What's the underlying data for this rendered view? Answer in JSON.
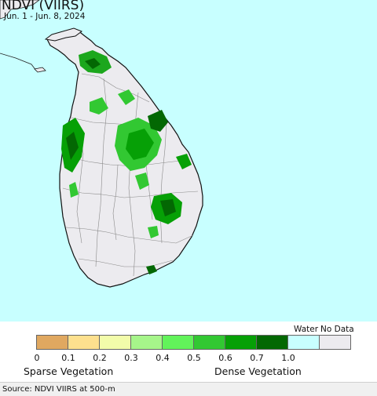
{
  "map": {
    "title": "NDVI (VIIRS)",
    "date_range": "Jun. 1 - Jun. 8, 2024",
    "ocean_color": "#c8ffff",
    "land_color": "#ecebef",
    "border_color": "#8a8a8a"
  },
  "legend": {
    "water_label": "Water",
    "nodata_label": "No Data",
    "bins": [
      {
        "value": "0",
        "color": "#e0a860"
      },
      {
        "value": "0.1",
        "color": "#fde08e"
      },
      {
        "value": "0.2",
        "color": "#f2fcaa"
      },
      {
        "value": "0.3",
        "color": "#a6f58a"
      },
      {
        "value": "0.4",
        "color": "#62f35a"
      },
      {
        "value": "0.5",
        "color": "#32c832"
      },
      {
        "value": "0.6",
        "color": "#06a006"
      },
      {
        "value": "0.7",
        "color": "#036803"
      },
      {
        "value": "1.0",
        "color": null
      }
    ],
    "water_color": "#c8ffff",
    "nodata_color": "#ecebef",
    "left_caption": "Sparse Vegetation",
    "right_caption": "Dense Vegetation"
  },
  "footer": {
    "source": "Source: NDVI VIIRS at 500-m"
  }
}
